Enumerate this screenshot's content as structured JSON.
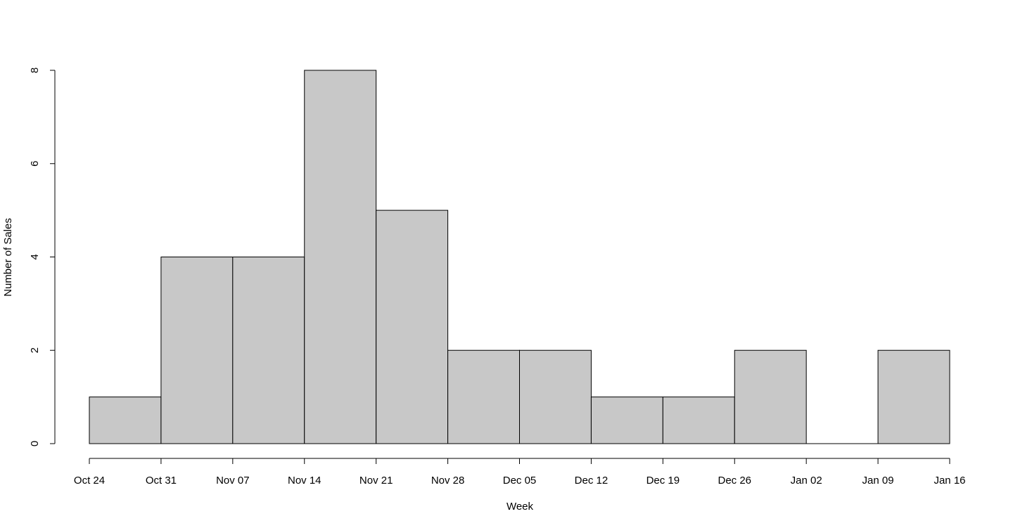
{
  "chart_data": {
    "type": "histogram",
    "xlabel": "Week",
    "ylabel": "Number of Sales",
    "bins": [
      "Oct 24",
      "Oct 31",
      "Nov 07",
      "Nov 14",
      "Nov 21",
      "Nov 28",
      "Dec 05",
      "Dec 12",
      "Dec 19",
      "Dec 26",
      "Jan 02",
      "Jan 09",
      "Jan 16"
    ],
    "counts": [
      1,
      4,
      4,
      8,
      5,
      2,
      2,
      1,
      1,
      2,
      0,
      2
    ],
    "color": "#c8c8c8",
    "ylim": [
      0,
      8
    ],
    "yticks": [
      0,
      2,
      4,
      6,
      8
    ]
  }
}
